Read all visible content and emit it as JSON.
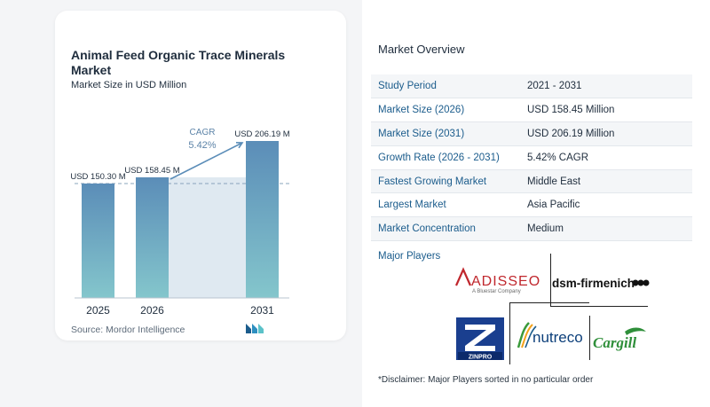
{
  "chart": {
    "title": "Animal Feed Organic Trace Minerals Market",
    "subtitle": "Market Size in USD Million",
    "source": "Source:  Mordor Intelligence",
    "cagr_label": "CAGR",
    "cagr_value": "5.42%"
  },
  "chart_data": {
    "type": "bar",
    "title": "Animal Feed Organic Trace Minerals Market",
    "subtitle": "Market Size in USD Million",
    "categories": [
      "2025",
      "2026",
      "2031"
    ],
    "values": [
      150.3,
      158.45,
      206.19
    ],
    "data_labels": [
      "USD 150.30 M",
      "USD 158.45 M",
      "USD 206.19 M"
    ],
    "ylim": [
      0,
      206.19
    ],
    "annotation": {
      "label": "CAGR",
      "value": "5.42%"
    },
    "colors": {
      "bar_top": "#5b8db8",
      "bar_bottom": "#84c6cc",
      "highlight": "#dfe9f1",
      "arrow": "#5b8db8"
    }
  },
  "overview": {
    "title": "Market Overview",
    "rows": [
      {
        "key": "Study Period",
        "value": "2021 - 2031"
      },
      {
        "key": "Market Size (2026)",
        "value": "USD 158.45 Million"
      },
      {
        "key": "Market Size (2031)",
        "value": "USD 206.19 Million"
      },
      {
        "key": "Growth Rate (2026 - 2031)",
        "value": "5.42% CAGR"
      },
      {
        "key": "Fastest Growing Market",
        "value": "Middle East"
      },
      {
        "key": "Largest Market",
        "value": "Asia Pacific"
      },
      {
        "key": "Market Concentration",
        "value": "Medium"
      }
    ],
    "players_label": "Major Players",
    "disclaimer": "*Disclaimer: Major Players sorted in no particular order"
  },
  "players": {
    "adisseo": {
      "name": "ADISSEO",
      "tagline": "A Bluestar Company"
    },
    "dsm": {
      "name": "dsm-firmenich"
    },
    "zinpro": {
      "name": "ZINPRO"
    },
    "nutreco": {
      "name": "nutreco"
    },
    "cargill": {
      "name": "Cargill"
    }
  }
}
